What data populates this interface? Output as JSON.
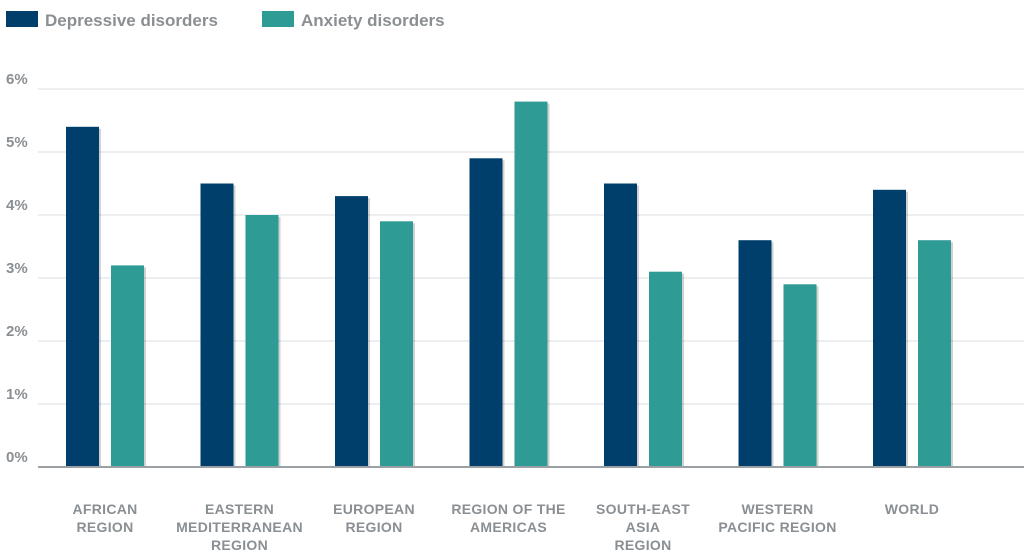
{
  "chart_data": {
    "type": "bar",
    "categories": [
      [
        "AFRICAN",
        "REGION"
      ],
      [
        "EASTERN",
        "MEDITERRANEAN",
        "REGION"
      ],
      [
        "EUROPEAN",
        "REGION"
      ],
      [
        "REGION OF THE",
        "AMERICAS"
      ],
      [
        "SOUTH-EAST",
        "ASIA",
        "REGION"
      ],
      [
        "WESTERN",
        "PACIFIC REGION"
      ],
      [
        "WORLD"
      ]
    ],
    "series": [
      {
        "name": "Depressive disorders",
        "color": "#003f6b",
        "values": [
          5.4,
          4.5,
          4.3,
          4.9,
          4.5,
          3.6,
          4.4
        ]
      },
      {
        "name": "Anxiety disorders",
        "color": "#2e9b94",
        "values": [
          3.2,
          4.0,
          3.9,
          5.8,
          3.1,
          2.9,
          3.6
        ]
      }
    ],
    "ylim": [
      0,
      6
    ],
    "yticks": [
      "0%",
      "1%",
      "2%",
      "3%",
      "4%",
      "5%",
      "6%"
    ],
    "grid": true,
    "legend": "top-left"
  }
}
